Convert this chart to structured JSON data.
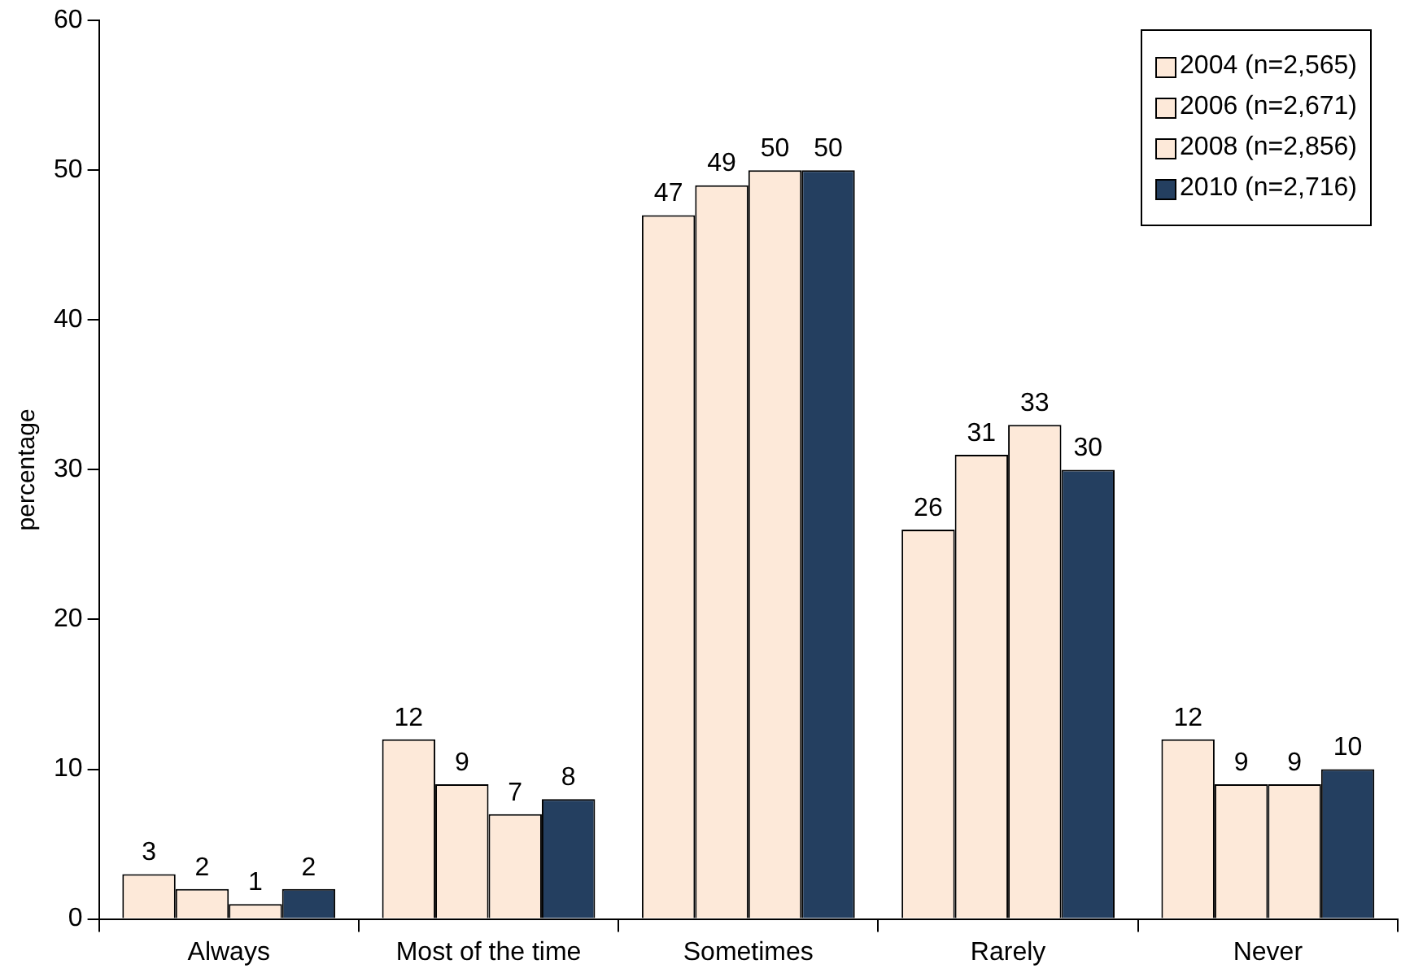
{
  "chart_data": {
    "type": "bar",
    "ylabel": "percentage",
    "categories": [
      "Always",
      "Most of the time",
      "Sometimes",
      "Rarely",
      "Never"
    ],
    "series": [
      {
        "name": "2004 (n=2,565)",
        "color": "#fde9d9",
        "values": [
          3,
          12,
          47,
          26,
          12
        ]
      },
      {
        "name": "2006 (n=2,671)",
        "color": "#fde9d9",
        "values": [
          2,
          9,
          49,
          31,
          9
        ]
      },
      {
        "name": "2008 (n=2,856)",
        "color": "#fde9d9",
        "values": [
          1,
          7,
          50,
          33,
          9
        ]
      },
      {
        "name": "2010 (n=2,716)",
        "color": "#243f60",
        "values": [
          2,
          8,
          50,
          30,
          10
        ]
      }
    ],
    "ylim": [
      0,
      60
    ],
    "yticks": [
      0,
      10,
      20,
      30,
      40,
      50,
      60
    ],
    "data_labels": true,
    "legend": "top right",
    "grid": false
  }
}
